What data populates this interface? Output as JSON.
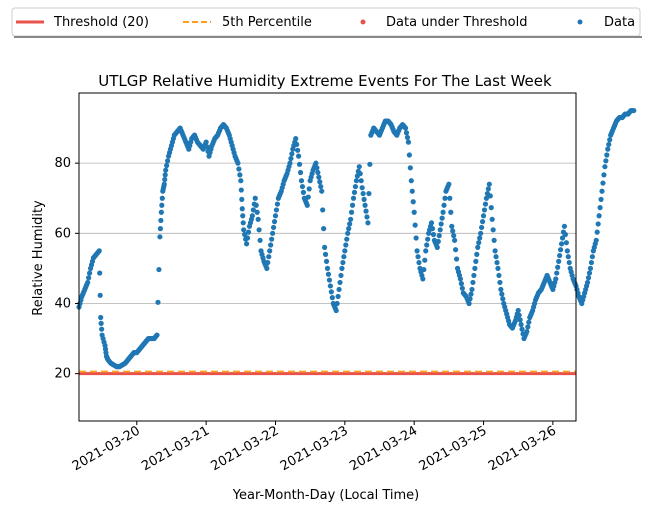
{
  "chart_data": {
    "type": "scatter",
    "title": "UTLGP Relative Humidity Extreme Events For The Last Week",
    "xlabel": "Year-Month-Day (Local Time)",
    "ylabel": "Relative Humidity",
    "xlim": [
      "2021-03-19 04:00",
      "2021-03-26 04:00"
    ],
    "ylim": [
      6.5,
      100
    ],
    "x_ticks": [
      "2021-03-20",
      "2021-03-21",
      "2021-03-22",
      "2021-03-23",
      "2021-03-24",
      "2021-03-25",
      "2021-03-26"
    ],
    "y_ticks": [
      20,
      40,
      60,
      80
    ],
    "grid": "horizontal",
    "legend": {
      "placement": "top, above plot",
      "entries": [
        {
          "label": "Threshold (20)",
          "style": "solid-line",
          "color": "#e8524a"
        },
        {
          "label": "5th Percentile",
          "style": "dashed-line",
          "color": "#ff9f1c"
        },
        {
          "label": "Data under Threshold",
          "style": "marker",
          "color": "#e8524a"
        },
        {
          "label": "Data",
          "style": "marker",
          "color": "#1f77b4"
        }
      ]
    },
    "threshold": 20,
    "percentile_5th": 20.6,
    "series": [
      {
        "name": "Data",
        "color": "#1f77b4",
        "x_unit": "hours since 2021-03-19 00:00",
        "points": [
          [
            4,
            39
          ],
          [
            5,
            42
          ],
          [
            6,
            44
          ],
          [
            7,
            46
          ],
          [
            8,
            50
          ],
          [
            9,
            53
          ],
          [
            10,
            54
          ],
          [
            11,
            55
          ],
          [
            11.5,
            36
          ],
          [
            12,
            31
          ],
          [
            13,
            28
          ],
          [
            13.5,
            25
          ],
          [
            14,
            24
          ],
          [
            15,
            23
          ],
          [
            16,
            22.5
          ],
          [
            17,
            22
          ],
          [
            18,
            22
          ],
          [
            19,
            22.5
          ],
          [
            20,
            23
          ],
          [
            21,
            24
          ],
          [
            22,
            25
          ],
          [
            23,
            26
          ],
          [
            24,
            26
          ],
          [
            25,
            27
          ],
          [
            26,
            28
          ],
          [
            27,
            29
          ],
          [
            28,
            30
          ],
          [
            29,
            30
          ],
          [
            30,
            30
          ],
          [
            31,
            31
          ],
          [
            32,
            59
          ],
          [
            32.5,
            66
          ],
          [
            33,
            72
          ],
          [
            33.5,
            74
          ],
          [
            34,
            78
          ],
          [
            35,
            82
          ],
          [
            36,
            85
          ],
          [
            37,
            88
          ],
          [
            38,
            89
          ],
          [
            39,
            90
          ],
          [
            40,
            88
          ],
          [
            41,
            86
          ],
          [
            42,
            84
          ],
          [
            43,
            87
          ],
          [
            44,
            88
          ],
          [
            45,
            86
          ],
          [
            46,
            85
          ],
          [
            47,
            84
          ],
          [
            48,
            86
          ],
          [
            49,
            82
          ],
          [
            50,
            85
          ],
          [
            51,
            87
          ],
          [
            52,
            88
          ],
          [
            53,
            90
          ],
          [
            54,
            91
          ],
          [
            55,
            90
          ],
          [
            56,
            88
          ],
          [
            57,
            85
          ],
          [
            58,
            82
          ],
          [
            59,
            80
          ],
          [
            60,
            75
          ],
          [
            60.5,
            67
          ],
          [
            61,
            61
          ],
          [
            62,
            57
          ],
          [
            63,
            62
          ],
          [
            64,
            65
          ],
          [
            65,
            70
          ],
          [
            66,
            64
          ],
          [
            67,
            55
          ],
          [
            68,
            52
          ],
          [
            69,
            50
          ],
          [
            70,
            55
          ],
          [
            71,
            60
          ],
          [
            72,
            65
          ],
          [
            73,
            70
          ],
          [
            74,
            72
          ],
          [
            75,
            75
          ],
          [
            76,
            77
          ],
          [
            77,
            80
          ],
          [
            78,
            84
          ],
          [
            79,
            87
          ],
          [
            80,
            82
          ],
          [
            81,
            75
          ],
          [
            82,
            70
          ],
          [
            83,
            68
          ],
          [
            84,
            75
          ],
          [
            85,
            78
          ],
          [
            86,
            80
          ],
          [
            87,
            76
          ],
          [
            88,
            72
          ],
          [
            89,
            56
          ],
          [
            90,
            50
          ],
          [
            91,
            45
          ],
          [
            92,
            40
          ],
          [
            93,
            38
          ],
          [
            94,
            44
          ],
          [
            95,
            50
          ],
          [
            96,
            55
          ],
          [
            97,
            60
          ],
          [
            98,
            64
          ],
          [
            99,
            70
          ],
          [
            100,
            75
          ],
          [
            101,
            79
          ],
          [
            102,
            73
          ],
          [
            103,
            68
          ],
          [
            104,
            63
          ],
          [
            105,
            88
          ],
          [
            106,
            90
          ],
          [
            107,
            89
          ],
          [
            108,
            88
          ],
          [
            109,
            90
          ],
          [
            110,
            92
          ],
          [
            111,
            92
          ],
          [
            112,
            91
          ],
          [
            113,
            89
          ],
          [
            114,
            88
          ],
          [
            115,
            90
          ],
          [
            116,
            91
          ],
          [
            117,
            90
          ],
          [
            118,
            86
          ],
          [
            119,
            75
          ],
          [
            120,
            66
          ],
          [
            121,
            55
          ],
          [
            122,
            50
          ],
          [
            123,
            47
          ],
          [
            124,
            55
          ],
          [
            125,
            60
          ],
          [
            126,
            63
          ],
          [
            127,
            58
          ],
          [
            128,
            56
          ],
          [
            129,
            61
          ],
          [
            130,
            66
          ],
          [
            131,
            72
          ],
          [
            132,
            74
          ],
          [
            133,
            62
          ],
          [
            134,
            58
          ],
          [
            135,
            50
          ],
          [
            136,
            47
          ],
          [
            137,
            43
          ],
          [
            138,
            42
          ],
          [
            139,
            40
          ],
          [
            140,
            44
          ],
          [
            141,
            50
          ],
          [
            142,
            56
          ],
          [
            143,
            60
          ],
          [
            144,
            65
          ],
          [
            145,
            70
          ],
          [
            146,
            74
          ],
          [
            147,
            64
          ],
          [
            148,
            55
          ],
          [
            149,
            50
          ],
          [
            150,
            44
          ],
          [
            151,
            40
          ],
          [
            152,
            37
          ],
          [
            153,
            34
          ],
          [
            154,
            33
          ],
          [
            155,
            35
          ],
          [
            156,
            38
          ],
          [
            157,
            34
          ],
          [
            158,
            30
          ],
          [
            159,
            32
          ],
          [
            160,
            36
          ],
          [
            161,
            38
          ],
          [
            162,
            41
          ],
          [
            163,
            43
          ],
          [
            164,
            44
          ],
          [
            165,
            46
          ],
          [
            166,
            48
          ],
          [
            167,
            46
          ],
          [
            168,
            44
          ],
          [
            169,
            47
          ],
          [
            170,
            52
          ],
          [
            171,
            57
          ],
          [
            172,
            62
          ],
          [
            173,
            55
          ],
          [
            174,
            50
          ],
          [
            175,
            47
          ],
          [
            176,
            45
          ],
          [
            177,
            42
          ],
          [
            178,
            40
          ],
          [
            179,
            43
          ],
          [
            180,
            46
          ],
          [
            181,
            50
          ],
          [
            182,
            55
          ],
          [
            183,
            58
          ],
          [
            184,
            65
          ],
          [
            185,
            72
          ],
          [
            186,
            79
          ],
          [
            187,
            84
          ],
          [
            188,
            88
          ],
          [
            189,
            90
          ],
          [
            190,
            92
          ],
          [
            191,
            93
          ],
          [
            192,
            93
          ],
          [
            193,
            94
          ],
          [
            194,
            94
          ],
          [
            195,
            95
          ],
          [
            196,
            95
          ]
        ]
      },
      {
        "name": "Data under Threshold",
        "color": "#e8524a",
        "points": []
      }
    ]
  }
}
